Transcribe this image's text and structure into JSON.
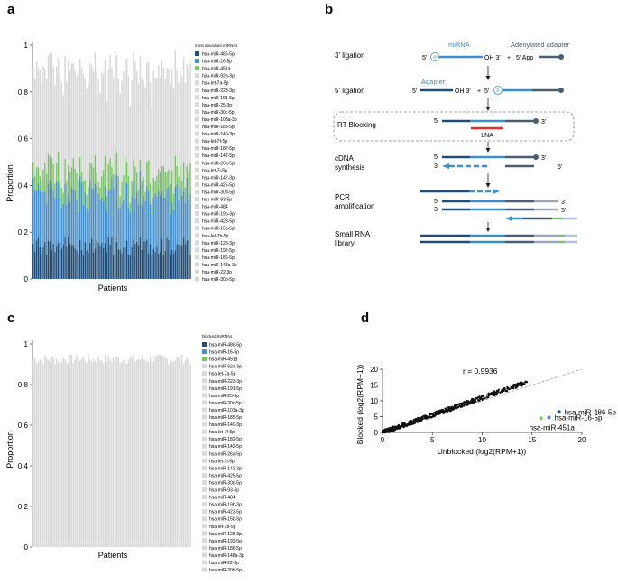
{
  "panels": {
    "a": "a",
    "b": "b",
    "c": "c",
    "d": "d"
  },
  "colors": {
    "dark_blue": "#1f4e79",
    "mid_blue": "#4a90c8",
    "green": "#7cc36a",
    "grey": "#d9d9d9",
    "axis": "#333333",
    "red": "#e0302a",
    "adapter_blue": "#3a8fd0",
    "adapter_dark": "#4b5d73"
  },
  "chart_data": [
    {
      "panel": "a",
      "type": "bar",
      "stacked": true,
      "n_patients": 95,
      "xlabel": "Patients",
      "ylabel": "Proportion",
      "ylim": [
        0,
        1
      ],
      "yticks": [
        "0",
        "0.2",
        "0.4",
        "0.6",
        "0.8",
        "1"
      ],
      "legend_title": "most abundant miRNAs",
      "legend": [
        "hsa-miR-486-5p",
        "hsa-miR-16-5p",
        "hsa-miR-451a",
        "hsa-miR-92a-3p",
        "hsa-let-7a-5p",
        "hsa-miR-223-3p",
        "hsa-miR-191-5p",
        "hsa-miR-25-3p",
        "hsa-miR-30c-5p",
        "hsa-miR-103a-3p",
        "hsa-miR-185-5p",
        "hsa-miR-140-3p",
        "hsa-let-7f-5p",
        "hsa-miR-182-5p",
        "hsa-miR-142-5p",
        "hsa-miR-26a-5p",
        "hsa-let-7i-5p",
        "hsa-miR-142-3p",
        "hsa-miR-425-5p",
        "hsa-miR-30d-5p",
        "hsa-miR-93-5p",
        "hsa-miR-484",
        "hsa-miR-19b-3p",
        "hsa-miR-423-5p",
        "hsa-miR-15b-5p",
        "hsa-let-7b-5p",
        "hsa-miR-128-3p",
        "hsa-miR-192-5p",
        "hsa-miR-186-5p",
        "hsa-miR-148a-3p",
        "hsa-miR-22-3p",
        "hsa-miR-30b-5p"
      ],
      "series_means": {
        "hsa-miR-486-5p": 0.14,
        "hsa-miR-16-5p": 0.22,
        "hsa-miR-451a": 0.09,
        "others_total": 0.47
      }
    },
    {
      "panel": "c",
      "type": "bar",
      "stacked": true,
      "n_patients": 95,
      "xlabel": "Patients",
      "ylabel": "Proportion",
      "ylim": [
        0,
        1
      ],
      "yticks": [
        "0",
        "0.2",
        "0.4",
        "0.6",
        "0.8",
        "1"
      ],
      "legend_title": "blocked miRNAs",
      "legend": [
        "hsa-miR-486-5p",
        "hsa-miR-16-5p",
        "hsa-miR-451a",
        "hsa-miR-92a-3p",
        "hsa-let-7a-5p",
        "hsa-miR-223-3p",
        "hsa-miR-191-5p",
        "hsa-miR-25-3p",
        "hsa-miR-30c-5p",
        "hsa-miR-103a-3p",
        "hsa-miR-185-5p",
        "hsa-miR-140-3p",
        "hsa-let-7f-5p",
        "hsa-miR-182-5p",
        "hsa-miR-142-5p",
        "hsa-miR-26a-5p",
        "hsa-let-7i-5p",
        "hsa-miR-142-3p",
        "hsa-miR-425-5p",
        "hsa-miR-30d-5p",
        "hsa-miR-93-5p",
        "hsa-miR-484",
        "hsa-miR-19b-3p",
        "hsa-miR-423-5p",
        "hsa-miR-15b-5p",
        "hsa-let-7b-5p",
        "hsa-miR-128-3p",
        "hsa-miR-192-5p",
        "hsa-miR-186-5p",
        "hsa-miR-148a-3p",
        "hsa-miR-22-3p",
        "hsa-miR-30b-5p"
      ],
      "series_means": {
        "hsa-miR-486-5p": 0.0,
        "hsa-miR-16-5p": 0.0,
        "hsa-miR-451a": 0.0,
        "others_total": 0.93
      }
    },
    {
      "panel": "d",
      "type": "scatter",
      "xlabel": "Unblocked (log2(RPM+1))",
      "ylabel": "Blocked (log2(RPM+1))",
      "xlim": [
        0,
        20
      ],
      "ylim": [
        0,
        20
      ],
      "xticks": [
        "0",
        "5",
        "10",
        "15",
        "20"
      ],
      "yticks": [
        "0",
        "5",
        "10",
        "15",
        "20"
      ],
      "annotation": "r = 0.9936",
      "highlighted": [
        {
          "label": "hsa-miR-486-5p",
          "x": 17.7,
          "y": 6.5,
          "color": "#1f4e79"
        },
        {
          "label": "hsa-miR-16-5p",
          "x": 16.7,
          "y": 4.7,
          "color": "#4a90c8"
        },
        {
          "label": "hsa-miR-451a",
          "x": 15.9,
          "y": 4.5,
          "color": "#7cc36a"
        }
      ]
    }
  ],
  "diagram": {
    "steps": [
      "3' ligation",
      "5' ligation",
      "RT Blocking",
      "cDNA\nsynthesis",
      "PCR\namplification",
      "Small RNA\nlibrary"
    ],
    "labels": {
      "mirna": "miRNA",
      "adenylated": "Adenylated adapter",
      "adapter": "Adapter",
      "lna": "LNA",
      "p": "P",
      "five": "5'",
      "three": "3'",
      "oh3": "OH 3'",
      "plus": "+",
      "app": "5' App"
    }
  }
}
